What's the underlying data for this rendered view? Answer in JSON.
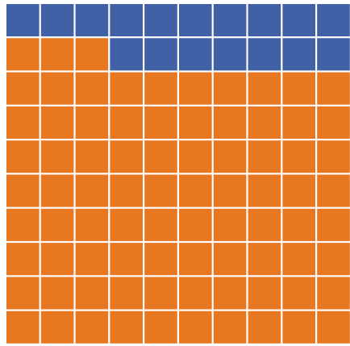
{
  "chart_data": {
    "type": "waffle",
    "values": [
      83,
      17
    ],
    "colors": [
      "#e87722",
      "#4161a6"
    ],
    "rows": 10,
    "columns": 10
  }
}
